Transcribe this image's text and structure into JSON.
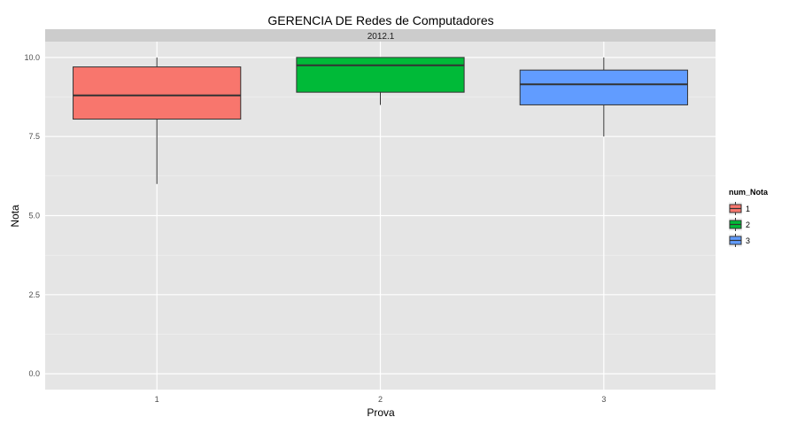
{
  "chart_data": {
    "type": "boxplot",
    "title": "GERENCIA DE Redes de Computadores",
    "facet_label": "2012.1",
    "xlabel": "Prova",
    "ylabel": "Nota",
    "ylim": [
      -0.5,
      10.5
    ],
    "yticks": [
      "0.0",
      "2.5",
      "5.0",
      "7.5",
      "10.0"
    ],
    "categories": [
      "1",
      "2",
      "3"
    ],
    "legend": {
      "title": "num_Nota",
      "position": "right"
    },
    "grid": true,
    "series": [
      {
        "name": "1",
        "color": "#F8766D",
        "min": 6.0,
        "q1": 8.05,
        "median": 8.8,
        "q3": 9.7,
        "max": 10.0
      },
      {
        "name": "2",
        "color": "#00BA38",
        "min": 8.5,
        "q1": 8.9,
        "median": 9.75,
        "q3": 10.0,
        "max": 10.0
      },
      {
        "name": "3",
        "color": "#619CFF",
        "min": 7.5,
        "q1": 8.5,
        "median": 9.15,
        "q3": 9.6,
        "max": 10.0
      }
    ]
  }
}
